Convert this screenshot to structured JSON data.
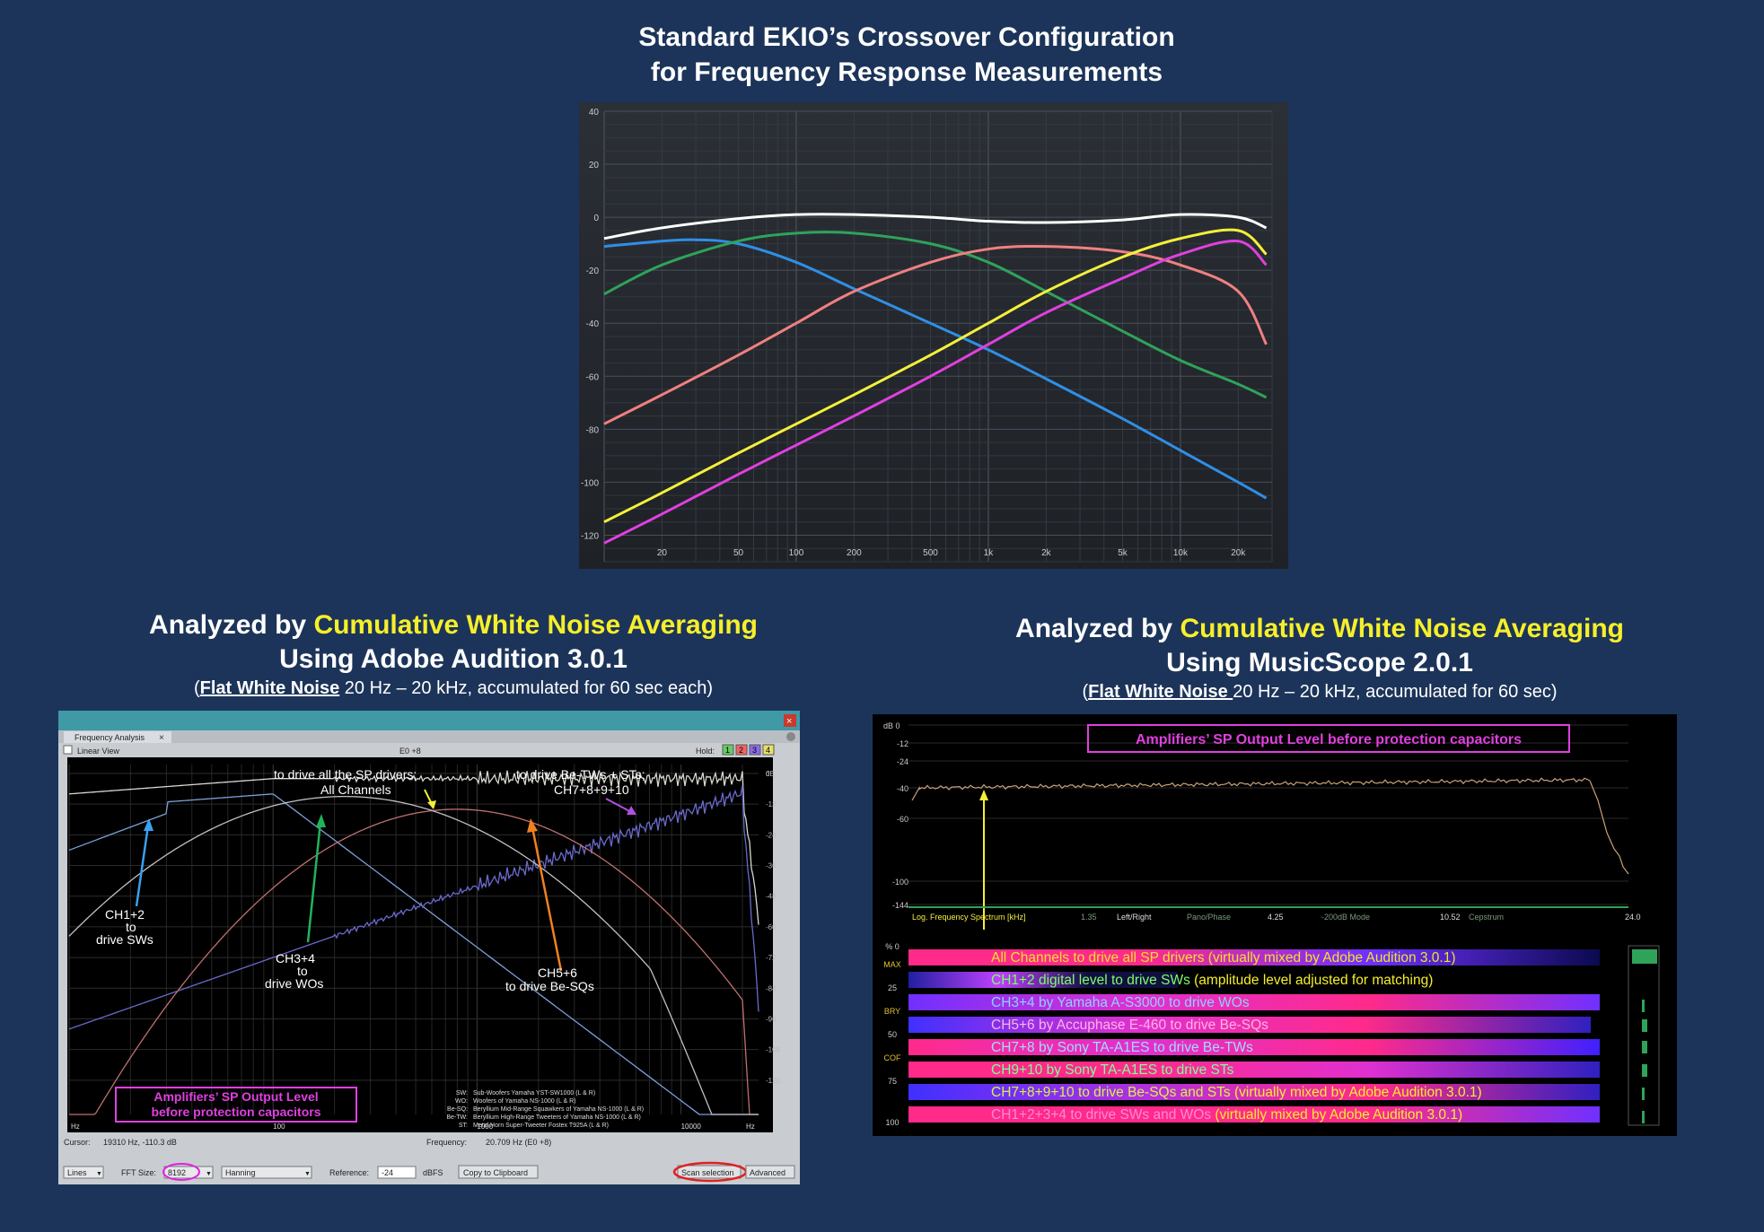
{
  "top": {
    "title_line1": "Standard EKIO’s Crossover Configuration",
    "title_line2": "for Frequency Response Measurements"
  },
  "left": {
    "heading_prefix": "Analyzed by",
    "heading_highlight": "Cumulative White Noise Averaging",
    "heading_line2": "Using Adobe Audition 3.0.1",
    "note_open": "(",
    "note_link": "Flat White Noise",
    "note_rest": " 20 Hz – 20 kHz,  accumulated  for 60 sec each)",
    "window": {
      "tab": "Frequency Analysis",
      "linear_view": "Linear View",
      "center_label": "E0 +8",
      "hold_label": "Hold:",
      "hold_buttons": [
        "1",
        "2",
        "3",
        "4"
      ],
      "cursor_label": "Cursor:",
      "cursor_value": "19310 Hz, -110.3 dB",
      "frequency_label": "Frequency:",
      "frequency_value": "20.709 Hz (E0 +8)",
      "lines_select": "Lines",
      "fft_label": "FFT Size:",
      "fft_value": "8192",
      "window_select": "Hanning",
      "reference_label": "Reference:",
      "reference_value": "-24",
      "dbfs_label": "dBFS",
      "copy_button": "Copy to Clipboard",
      "scan_button": "Scan selection",
      "advanced_button": "Advanced",
      "db_ticks": [
        "dB",
        "0",
        "-12",
        "-24",
        "-36",
        "-48",
        "-60",
        "-72",
        "-84",
        "-96",
        "-108",
        "-120"
      ],
      "hz_ticks": [
        "Hz",
        "100",
        "1000",
        "10000",
        "Hz"
      ],
      "annotations": {
        "all_line1": "to drive all the SP drivers;",
        "all_line2": "All Channels",
        "tw_line1": "to drive  Be-TWs + STs;",
        "tw_line2": "CH7+8+9+10",
        "ch12": [
          "CH1+2",
          "to",
          "drive SWs"
        ],
        "ch34": [
          "CH3+4",
          "to",
          "drive WOs"
        ],
        "ch56": [
          "CH5+6",
          "to drive Be-SQs"
        ],
        "box": [
          "Amplifiers’ SP Output Level",
          "before protection capacitors"
        ]
      },
      "legend": [
        {
          "abbr": "SW:",
          "text": "Sub-Woofers  Yamaha YST-SW1000 (L & R)"
        },
        {
          "abbr": "WO:",
          "text": "Woofers  of Yamaha NS-1000 (L & R)"
        },
        {
          "abbr": "Be-SQ:",
          "text": "Beryllium Mid-Range Squawkers of Yamaha NS-1000 (L & R)"
        },
        {
          "abbr": "Be-TW:",
          "text": "Beryllium High-Range Tweeters of Yamaha NS-1000 (L & R)"
        },
        {
          "abbr": "ST:",
          "text": "Metal Horn Super-Tweeter Fostex T925A (L & R)"
        }
      ]
    }
  },
  "right": {
    "heading_prefix": "Analyzed by",
    "heading_highlight": "Cumulative White Noise Averaging",
    "heading_line2": "Using MusicScope 2.0.1",
    "note_open": "(",
    "note_link": "Flat White Noise ",
    "note_rest": "20 Hz – 20 kHz,  accumulated  for 60 sec)",
    "scope": {
      "box": "Amplifiers’ SP Output Level before protection capacitors",
      "db_ticks": [
        "dB  0",
        "-12",
        "-24",
        "-40",
        "-60",
        "-100",
        "-144"
      ],
      "axis_labels": [
        "Log. Frequency Spectrum [kHz]",
        "1.35",
        "Left/Right",
        "Pano/Phase",
        "4.25",
        "-200dB Mode",
        "10.52",
        "Cepstrum",
        "24.0"
      ],
      "pct_ticks": [
        "%  0",
        "MAX",
        "25",
        "BRY",
        "50",
        "COF",
        "75",
        "100"
      ],
      "rows": [
        {
          "label": "All Channels to drive all SP drivers",
          "extra": " (virtually mixed by Adobe Audition 3.0.1)",
          "labelColor": "#f0e32a",
          "extraColor": "#f0e32a"
        },
        {
          "label": "CH1+2 digital level to drive SWs",
          "extra": " (amplitude level adjusted for matching)",
          "labelColor": "#7dff6a",
          "extraColor": "#f6ef2a"
        },
        {
          "label": "CH3+4 by Yamaha A-S3000 to drive WOs",
          "extra": "",
          "labelColor": "#8fd0ff",
          "extraColor": "#8fd0ff"
        },
        {
          "label": "CH5+6 by Accuphase E-460 to drive Be-SQs",
          "extra": "",
          "labelColor": "#ffb3e6",
          "extraColor": "#ffb3e6"
        },
        {
          "label": "CH7+8 by Sony TA-A1ES to drive Be-TWs",
          "extra": "",
          "labelColor": "#9fdcff",
          "extraColor": "#9fdcff"
        },
        {
          "label": "CH9+10 by Sony TA-A1ES  to drive STs",
          "extra": "",
          "labelColor": "#7dff9a",
          "extraColor": "#7dff9a"
        },
        {
          "label": "CH7+8+9+10 to drive Be-SQs and STs",
          "extra": "  (virtually mixed by Adobe Audition 3.0.1)",
          "labelColor": "#d7f24a",
          "extraColor": "#f6ef2a"
        },
        {
          "label": "CH1+2+3+4 to drive SWs and WOs",
          "extra": " (virtually mixed by Adobe Audition 3.0.1)",
          "labelColor": "#ff8ad8",
          "extraColor": "#f6ef2a"
        }
      ]
    }
  },
  "chart_data": [
    {
      "type": "line",
      "title": "Standard EKIO’s Crossover Configuration for Frequency Response Measurements",
      "x_scale": "log",
      "xlim": [
        10,
        30000
      ],
      "ylim": [
        -130,
        40
      ],
      "x_ticks": [
        20,
        50,
        100,
        200,
        500,
        1000,
        2000,
        5000,
        10000,
        20000
      ],
      "x_tick_labels": [
        "20",
        "50",
        "100",
        "200",
        "500",
        "1k",
        "2k",
        "5k",
        "10k",
        "20k"
      ],
      "y_ticks": [
        40,
        20,
        0,
        -20,
        -40,
        -60,
        -80,
        -100,
        -120
      ],
      "series": [
        {
          "color": "#ffffff",
          "x": [
            10,
            20,
            50,
            100,
            200,
            500,
            1000,
            2000,
            5000,
            10000,
            20000,
            28000
          ],
          "y": [
            -8,
            -4,
            -0.5,
            1,
            1,
            0,
            -1.5,
            -2,
            -1,
            1,
            0,
            -4
          ]
        },
        {
          "color": "#2f8fe6",
          "x": [
            10,
            20,
            30,
            50,
            100,
            200,
            500,
            1000,
            2000,
            5000,
            10000,
            20000,
            28000
          ],
          "y": [
            -11,
            -9,
            -8.5,
            -10,
            -17,
            -27,
            -40,
            -50,
            -61,
            -76,
            -88,
            -100,
            -106
          ]
        },
        {
          "color": "#2fa35a",
          "x": [
            10,
            20,
            50,
            100,
            200,
            500,
            1000,
            2000,
            5000,
            10000,
            20000,
            28000
          ],
          "y": [
            -29,
            -18,
            -9,
            -6,
            -6,
            -10,
            -17,
            -28,
            -43,
            -54,
            -63,
            -68
          ]
        },
        {
          "color": "#f08080",
          "x": [
            10,
            20,
            50,
            100,
            200,
            500,
            1000,
            2000,
            5000,
            10000,
            20000,
            28000
          ],
          "y": [
            -78,
            -67,
            -52,
            -40,
            -28,
            -17,
            -12,
            -11,
            -13,
            -18,
            -28,
            -48
          ]
        },
        {
          "color": "#f4f03a",
          "x": [
            10,
            20,
            50,
            100,
            200,
            500,
            1000,
            2000,
            5000,
            10000,
            20000,
            28000
          ],
          "y": [
            -115,
            -104,
            -89,
            -78,
            -67,
            -52,
            -40,
            -28,
            -15,
            -8,
            -5,
            -14
          ]
        },
        {
          "color": "#e040e0",
          "x": [
            10,
            20,
            50,
            100,
            200,
            500,
            1000,
            2000,
            5000,
            10000,
            20000,
            28000
          ],
          "y": [
            -123,
            -112,
            -97,
            -86,
            -75,
            -60,
            -48,
            -36,
            -23,
            -14,
            -9,
            -18
          ]
        }
      ]
    }
  ]
}
